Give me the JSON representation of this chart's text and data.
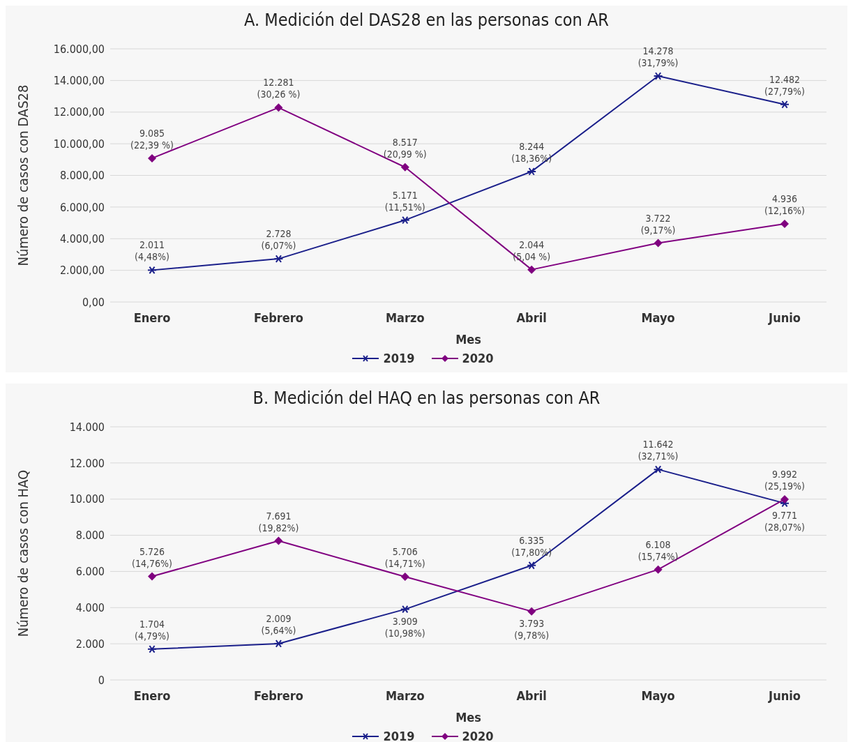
{
  "chart_data": [
    {
      "type": "line",
      "title": "A. Medición del DAS28 en las personas con AR",
      "xlabel": "Mes",
      "ylabel": "Número de casos  con DAS28",
      "categories": [
        "Enero",
        "Febrero",
        "Marzo",
        "Abril",
        "Mayo",
        "Junio"
      ],
      "series": [
        {
          "name": "2019",
          "color": "#1a1f8a",
          "marker": "cross",
          "values": [
            2011,
            2728,
            5171,
            8244,
            14278,
            12482
          ],
          "value_labels": [
            "2.011\n(4,48%)",
            "2.728\n(6,07%)",
            "5.171\n(11,51%)",
            "8.244\n(18,36%)",
            "14.278\n(31,79%)",
            "12.482\n(27,79%)"
          ]
        },
        {
          "name": "2020",
          "color": "#800080",
          "marker": "diamond",
          "values": [
            9085,
            12281,
            8517,
            2044,
            3722,
            4936
          ],
          "value_labels": [
            "9.085\n(22,39 %)",
            "12.281\n(30,26 %)",
            "8.517\n(20,99 %)",
            "2.044\n(5,04 %)",
            "3.722\n(9,17%)",
            "4.936\n(12,16%)"
          ]
        }
      ],
      "ylim": [
        0,
        16000
      ],
      "yticks": [
        {
          "value": 0,
          "label": "0,00"
        },
        {
          "value": 2000,
          "label": "2.000,00"
        },
        {
          "value": 4000,
          "label": "4.000,00"
        },
        {
          "value": 6000,
          "label": "6.000,00"
        },
        {
          "value": 8000,
          "label": "8.000,00"
        },
        {
          "value": 10000,
          "label": "10.000,00"
        },
        {
          "value": 12000,
          "label": "12.000,00"
        },
        {
          "value": 14000,
          "label": "14.000,00"
        },
        {
          "value": 16000,
          "label": "16.000,00"
        }
      ],
      "grid": "y",
      "legend": "bottom",
      "line_style": "solid"
    },
    {
      "type": "line",
      "title": "B. Medición del HAQ en las personas con AR",
      "xlabel": "Mes",
      "ylabel": "Número de casos  con HAQ",
      "categories": [
        "Enero",
        "Febrero",
        "Marzo",
        "Abril",
        "Mayo",
        "Junio"
      ],
      "series": [
        {
          "name": "2019",
          "color": "#1a1f8a",
          "marker": "cross",
          "values": [
            1704,
            2009,
            3909,
            6335,
            11642,
            9771
          ],
          "value_labels": [
            "1.704\n(4,79%)",
            "2.009\n(5,64%)",
            "3.909\n(10,98%)",
            "6.335\n(17,80%)",
            "11.642\n(32,71%)",
            "9.771\n(28,07%)"
          ]
        },
        {
          "name": "2020",
          "color": "#800080",
          "marker": "diamond",
          "values": [
            5726,
            7691,
            5706,
            3793,
            6108,
            9992
          ],
          "value_labels": [
            "5.726\n(14,76%)",
            "7.691\n(19,82%)",
            "5.706\n(14,71%)",
            "3.793\n(9,78%)",
            "6.108\n(15,74%)",
            "9.992\n(25,19%)"
          ]
        }
      ],
      "ylim": [
        0,
        14000
      ],
      "yticks": [
        {
          "value": 0,
          "label": "0"
        },
        {
          "value": 2000,
          "label": "2.000"
        },
        {
          "value": 4000,
          "label": "4.000"
        },
        {
          "value": 6000,
          "label": "6.000"
        },
        {
          "value": 8000,
          "label": "8.000"
        },
        {
          "value": 10000,
          "label": "10.000"
        },
        {
          "value": 12000,
          "label": "12.000"
        },
        {
          "value": 14000,
          "label": "14.000"
        }
      ],
      "grid": "y",
      "legend": "bottom",
      "line_style": "solid"
    }
  ]
}
